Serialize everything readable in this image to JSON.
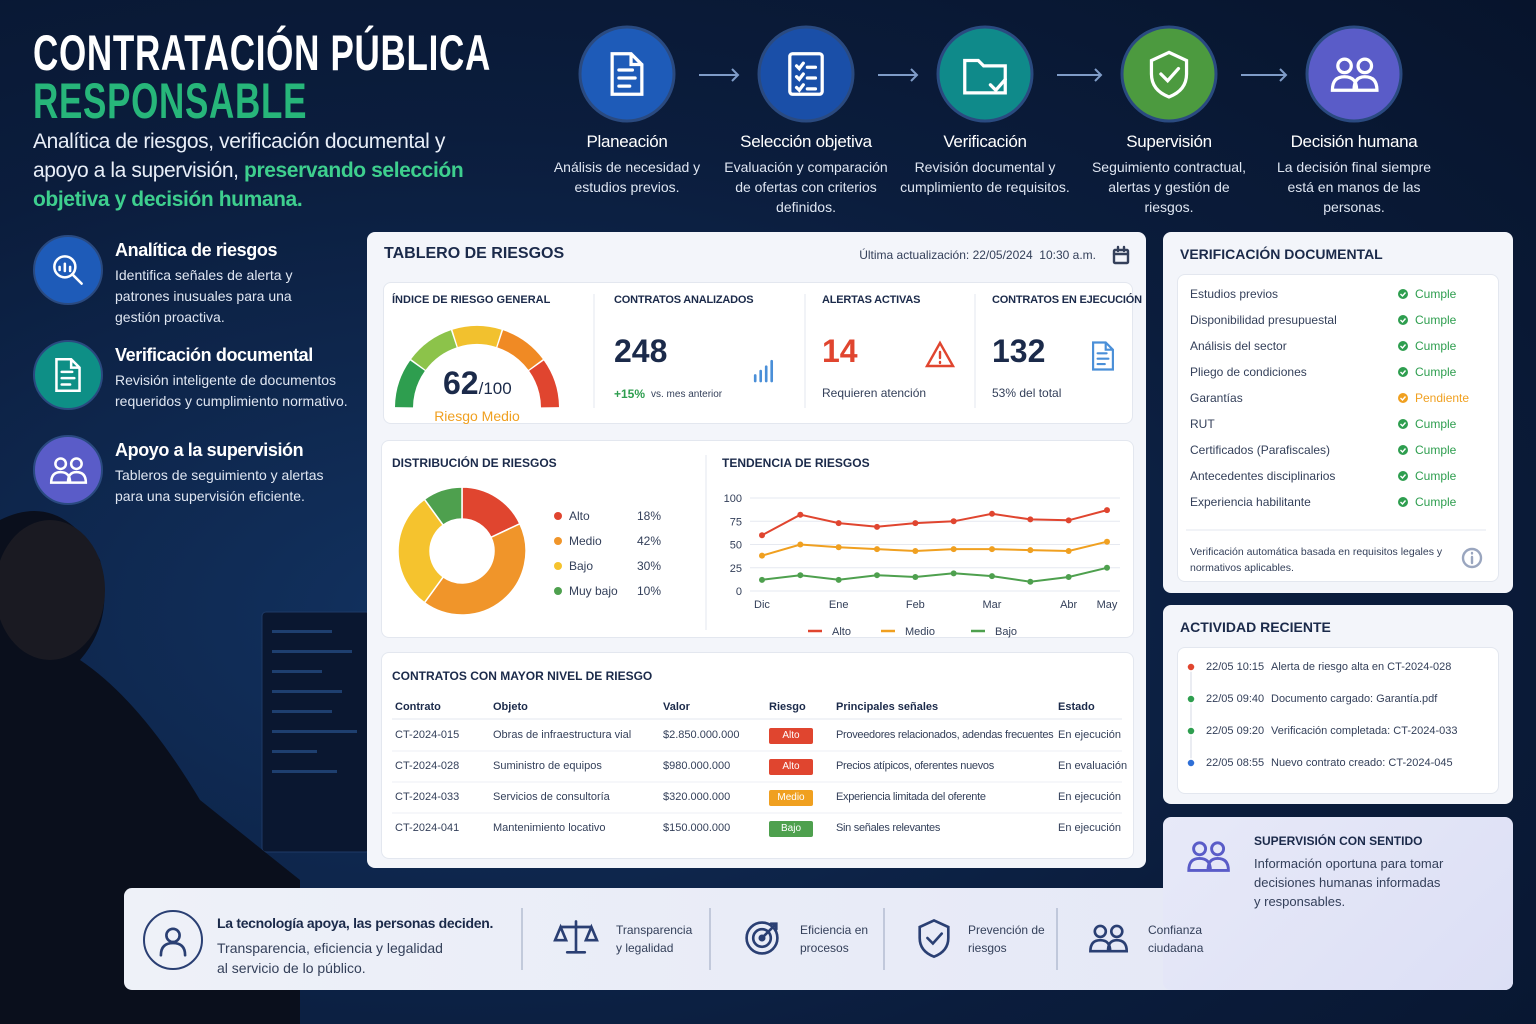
{
  "header": {
    "title_line1": "CONTRATACIÓN PÚBLICA",
    "title_line2": "RESPONSABLE",
    "subtitle": "Analítica de riesgos, verificación documental y apoyo a la supervisión, ",
    "subtitle_highlight": "preservando selección objetiva y decisión humana."
  },
  "process": [
    {
      "title": "Planeación",
      "text": "Análisis de necesidad y estudios previos."
    },
    {
      "title": "Selección objetiva",
      "text": "Evaluación y comparación de ofertas con criterios definidos."
    },
    {
      "title": "Verificación",
      "text": "Revisión documental y cumplimiento de requisitos."
    },
    {
      "title": "Supervisión",
      "text": "Seguimiento contractual, alertas y gestión de riesgos."
    },
    {
      "title": "Decisión humana",
      "text": "La decisión final siempre está en manos de las personas."
    }
  ],
  "features": [
    {
      "title": "Analítica de riesgos",
      "text": "Identifica señales de alerta y patrones inusuales para una gestión proactiva."
    },
    {
      "title": "Verificación documental",
      "text": "Revisión inteligente de documentos requeridos y cumplimiento normativo."
    },
    {
      "title": "Apoyo a la supervisión",
      "text": "Tableros de seguimiento y alertas para una supervisión eficiente."
    }
  ],
  "dashboard": {
    "title": "TABLERO DE RIESGOS",
    "updated": "Última actualización: 22/05/2024  10:30 a.m.",
    "gauge": {
      "label": "ÍNDICE DE RIESGO GENERAL",
      "value": 62,
      "max_label": "/100",
      "status": "Riesgo Medio"
    },
    "kpis": [
      {
        "label": "CONTRATOS ANALIZADOS",
        "value": 248,
        "delta": "+15%",
        "delta_note": "vs. mes anterior"
      },
      {
        "label": "ALERTAS ACTIVAS",
        "value": 14,
        "note": "Requieren atención"
      },
      {
        "label": "CONTRATOS EN EJECUCIÓN",
        "value": 132,
        "note": "53% del total"
      }
    ],
    "distribution": {
      "type": "pie",
      "title": "DISTRIBUCIÓN DE RIESGOS",
      "categories": [
        "Alto",
        "Medio",
        "Bajo",
        "Muy bajo"
      ],
      "values": [
        18,
        42,
        30,
        10
      ],
      "value_labels": [
        "18%",
        "42%",
        "30%",
        "10%"
      ],
      "colors": [
        "#e0452f",
        "#f0952a",
        "#f5c32e",
        "#4ea04e"
      ]
    },
    "trend": {
      "type": "line",
      "title": "TENDENCIA DE RIESGOS",
      "x": [
        "Dic",
        null,
        "Ene",
        null,
        "Feb",
        null,
        "Mar",
        null,
        "Abr",
        "May"
      ],
      "ylim": [
        0,
        100
      ],
      "yticks": [
        0,
        25,
        50,
        75,
        100
      ],
      "grid": true,
      "series": [
        {
          "name": "Alto",
          "color": "#e0452f",
          "values": [
            60,
            82,
            73,
            69,
            73,
            75,
            83,
            77,
            76,
            87
          ]
        },
        {
          "name": "Medio",
          "color": "#f0a020",
          "values": [
            38,
            50,
            47,
            45,
            43,
            45,
            45,
            44,
            43,
            53
          ]
        },
        {
          "name": "Bajo",
          "color": "#4ea04e",
          "values": [
            12,
            17,
            12,
            17,
            15,
            19,
            16,
            10,
            15,
            25
          ]
        }
      ]
    }
  },
  "table": {
    "title": "CONTRATOS CON MAYOR NIVEL DE RIESGO",
    "columns": [
      "Contrato",
      "Objeto",
      "Valor",
      "Riesgo",
      "Principales señales",
      "Estado"
    ],
    "rows": [
      [
        "CT-2024-015",
        "Obras de infraestructura vial",
        "$2.850.000.000",
        "Alto",
        "Proveedores relacionados, adendas frecuentes",
        "En ejecución"
      ],
      [
        "CT-2024-028",
        "Suministro de equipos",
        "$980.000.000",
        "Alto",
        "Precios atípicos, oferentes nuevos",
        "En evaluación"
      ],
      [
        "CT-2024-033",
        "Servicios de consultoría",
        "$320.000.000",
        "Medio",
        "Experiencia limitada del oferente",
        "En ejecución"
      ],
      [
        "CT-2024-041",
        "Mantenimiento locativo",
        "$150.000.000",
        "Bajo",
        "Sin señales relevantes",
        "En ejecución"
      ]
    ],
    "risk_colors": [
      "#e0452f",
      "#e0452f",
      "#f0a020",
      "#4ea04e"
    ]
  },
  "verification": {
    "title": "VERIFICACIÓN DOCUMENTAL",
    "items": [
      {
        "name": "Estudios previos",
        "status": "Cumple",
        "color": "#2e9e4f"
      },
      {
        "name": "Disponibilidad presupuestal",
        "status": "Cumple",
        "color": "#2e9e4f"
      },
      {
        "name": "Análisis del sector",
        "status": "Cumple",
        "color": "#2e9e4f"
      },
      {
        "name": "Pliego de condiciones",
        "status": "Cumple",
        "color": "#2e9e4f"
      },
      {
        "name": "Garantías",
        "status": "Pendiente",
        "color": "#f0a020"
      },
      {
        "name": "RUT",
        "status": "Cumple",
        "color": "#2e9e4f"
      },
      {
        "name": "Certificados (Parafiscales)",
        "status": "Cumple",
        "color": "#2e9e4f"
      },
      {
        "name": "Antecedentes disciplinarios",
        "status": "Cumple",
        "color": "#2e9e4f"
      },
      {
        "name": "Experiencia habilitante",
        "status": "Cumple",
        "color": "#2e9e4f"
      }
    ],
    "note": "Verificación automática basada en requisitos legales y normativos aplicables."
  },
  "activity": {
    "title": "ACTIVIDAD RECIENTE",
    "items": [
      {
        "time": "22/05 10:15",
        "text": "Alerta de riesgo alta en CT-2024-028",
        "color": "#e0452f"
      },
      {
        "time": "22/05 09:40",
        "text": "Documento cargado: Garantía.pdf",
        "color": "#2e9e4f"
      },
      {
        "time": "22/05 09:20",
        "text": "Verificación completada: CT-2024-033",
        "color": "#2e9e4f"
      },
      {
        "time": "22/05 08:55",
        "text": "Nuevo contrato creado: CT-2024-045",
        "color": "#2f6fd6"
      }
    ]
  },
  "supervision": {
    "title": "SUPERVISIÓN CON SENTIDO",
    "text": "Información oportuna para tomar decisiones humanas informadas y responsables."
  },
  "footer": {
    "lead_title": "La tecnología apoya, las personas deciden.",
    "lead_text": "Transparencia, eficiencia y legalidad al servicio de lo público.",
    "items": [
      "Transparencia y legalidad",
      "Eficiencia en procesos",
      "Prevención de riesgos",
      "Confianza ciudadana"
    ]
  }
}
